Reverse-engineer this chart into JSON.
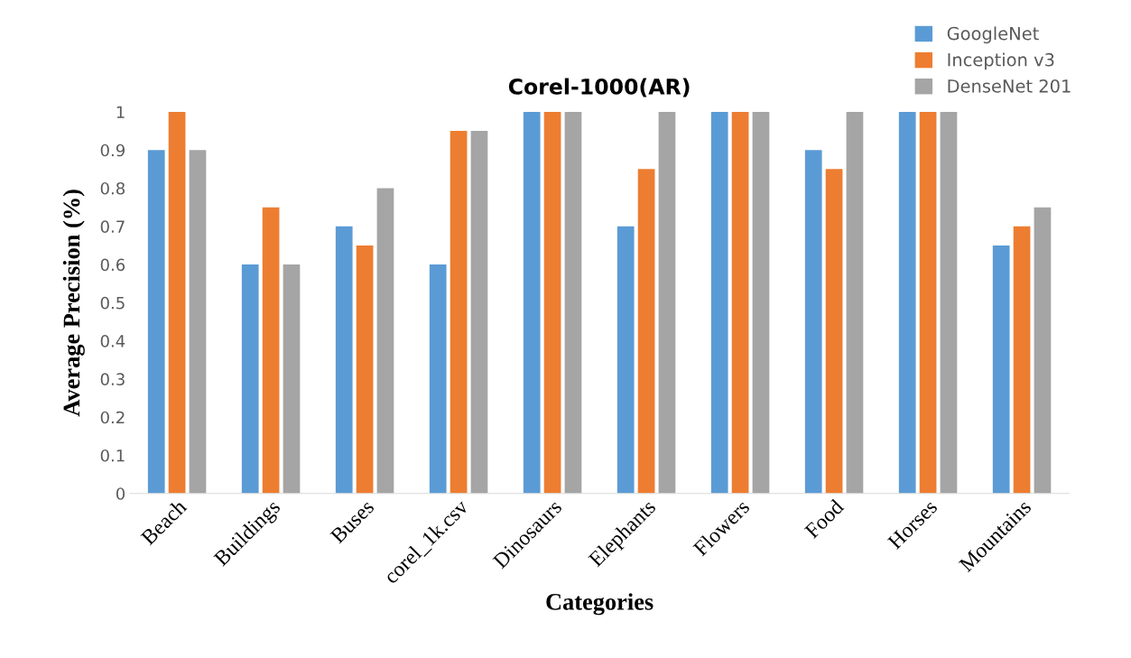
{
  "chart_data": {
    "type": "bar",
    "title": "Corel-1000(AR)",
    "xlabel": "Categories",
    "ylabel": "Average Precision (%)",
    "categories": [
      "Beach",
      "Buildings",
      "Buses",
      "corel_1k.csv",
      "Dinosaurs",
      "Elephants",
      "Flowers",
      "Food",
      "Horses",
      "Mountains"
    ],
    "series": [
      {
        "name": "GoogleNet",
        "color": "#5b9bd5",
        "values": [
          0.9,
          0.6,
          0.7,
          0.6,
          1,
          0.7,
          1,
          0.9,
          1,
          0.65
        ]
      },
      {
        "name": "Inception v3",
        "color": "#ed7d31",
        "values": [
          1,
          0.75,
          0.65,
          0.95,
          1,
          0.85,
          1,
          0.85,
          1,
          0.7
        ]
      },
      {
        "name": "DenseNet 201",
        "color": "#a5a5a5",
        "values": [
          0.9,
          0.6,
          0.8,
          0.95,
          1,
          1,
          1,
          1,
          1,
          0.75
        ]
      }
    ],
    "ylim": [
      0,
      1
    ],
    "yticks": [
      0,
      0.1,
      0.2,
      0.3,
      0.4,
      0.5,
      0.6,
      0.7,
      0.8,
      0.9,
      1
    ],
    "grid": false,
    "legend": "top right"
  }
}
